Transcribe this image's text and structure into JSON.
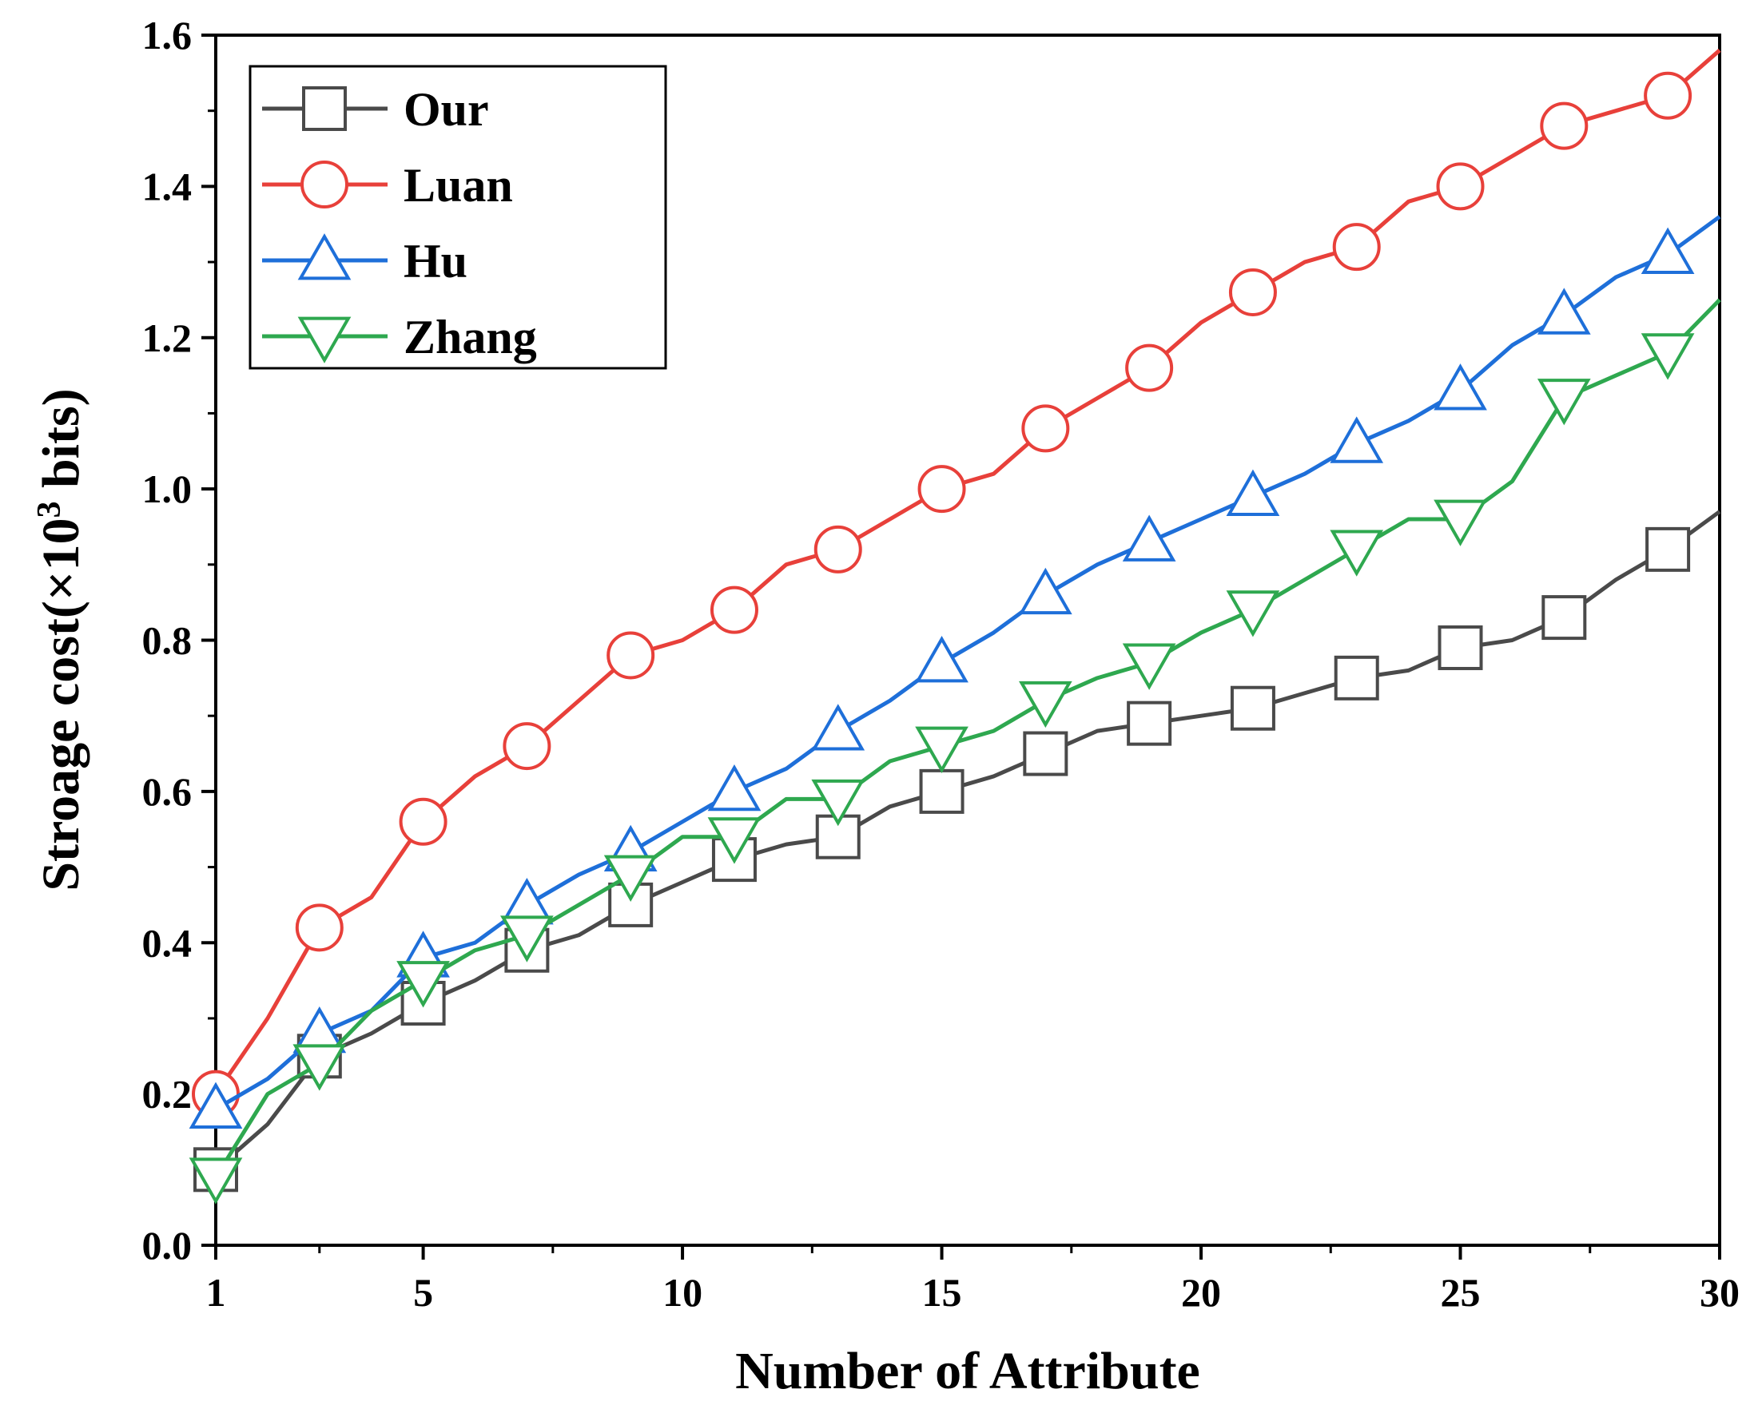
{
  "chart_data": {
    "type": "line",
    "title": "",
    "xlabel": "Number of Attribute",
    "ylabel": "Stroage cost(×10³ bits)",
    "ylabel_parts": {
      "main": "Stroage cost(×10",
      "sup": "3",
      "tail": " bits)"
    },
    "xlim": [
      1,
      30
    ],
    "ylim": [
      0,
      1.6
    ],
    "x_ticks": [
      1,
      5,
      10,
      15,
      20,
      25,
      30
    ],
    "y_ticks": [
      0.0,
      0.2,
      0.4,
      0.6,
      0.8,
      1.0,
      1.2,
      1.4,
      1.6
    ],
    "x_tick_labels": [
      "1",
      "5",
      "10",
      "15",
      "20",
      "25",
      "30"
    ],
    "y_tick_labels": [
      "0.0",
      "0.2",
      "0.4",
      "0.6",
      "0.8",
      "1.0",
      "1.2",
      "1.4",
      "1.6"
    ],
    "legend_position": "top-left",
    "x": [
      1,
      2,
      3,
      4,
      5,
      6,
      7,
      8,
      9,
      10,
      11,
      12,
      13,
      14,
      15,
      16,
      17,
      18,
      19,
      20,
      21,
      22,
      23,
      24,
      25,
      26,
      27,
      28,
      29,
      30
    ],
    "marker_x": [
      1,
      3,
      5,
      7,
      9,
      11,
      13,
      15,
      17,
      19,
      21,
      23,
      25,
      27,
      29
    ],
    "series": [
      {
        "name": "Our",
        "color": "#4a4a4a",
        "marker": "square",
        "values": [
          0.1,
          0.16,
          0.25,
          0.28,
          0.32,
          0.35,
          0.39,
          0.41,
          0.45,
          0.48,
          0.51,
          0.53,
          0.54,
          0.58,
          0.6,
          0.62,
          0.65,
          0.68,
          0.69,
          0.7,
          0.71,
          0.73,
          0.75,
          0.76,
          0.79,
          0.8,
          0.83,
          0.88,
          0.92,
          0.97
        ]
      },
      {
        "name": "Luan",
        "color": "#e8403a",
        "marker": "circle",
        "values": [
          0.2,
          0.3,
          0.42,
          0.46,
          0.56,
          0.62,
          0.66,
          0.72,
          0.78,
          0.8,
          0.84,
          0.9,
          0.92,
          0.96,
          1.0,
          1.02,
          1.08,
          1.12,
          1.16,
          1.22,
          1.26,
          1.3,
          1.32,
          1.38,
          1.4,
          1.44,
          1.48,
          1.5,
          1.52,
          1.58
        ]
      },
      {
        "name": "Hu",
        "color": "#1e6fd9",
        "marker": "triangle-up",
        "values": [
          0.18,
          0.22,
          0.28,
          0.31,
          0.38,
          0.4,
          0.45,
          0.49,
          0.52,
          0.56,
          0.6,
          0.63,
          0.68,
          0.72,
          0.77,
          0.81,
          0.86,
          0.9,
          0.93,
          0.96,
          0.99,
          1.02,
          1.06,
          1.09,
          1.13,
          1.19,
          1.23,
          1.28,
          1.31,
          1.36
        ]
      },
      {
        "name": "Zhang",
        "color": "#2ea84f",
        "marker": "triangle-down",
        "values": [
          0.09,
          0.2,
          0.24,
          0.31,
          0.35,
          0.39,
          0.41,
          0.45,
          0.49,
          0.54,
          0.54,
          0.59,
          0.59,
          0.64,
          0.66,
          0.68,
          0.72,
          0.75,
          0.77,
          0.81,
          0.84,
          0.88,
          0.92,
          0.96,
          0.96,
          1.01,
          1.12,
          1.15,
          1.18,
          1.25
        ]
      }
    ]
  }
}
